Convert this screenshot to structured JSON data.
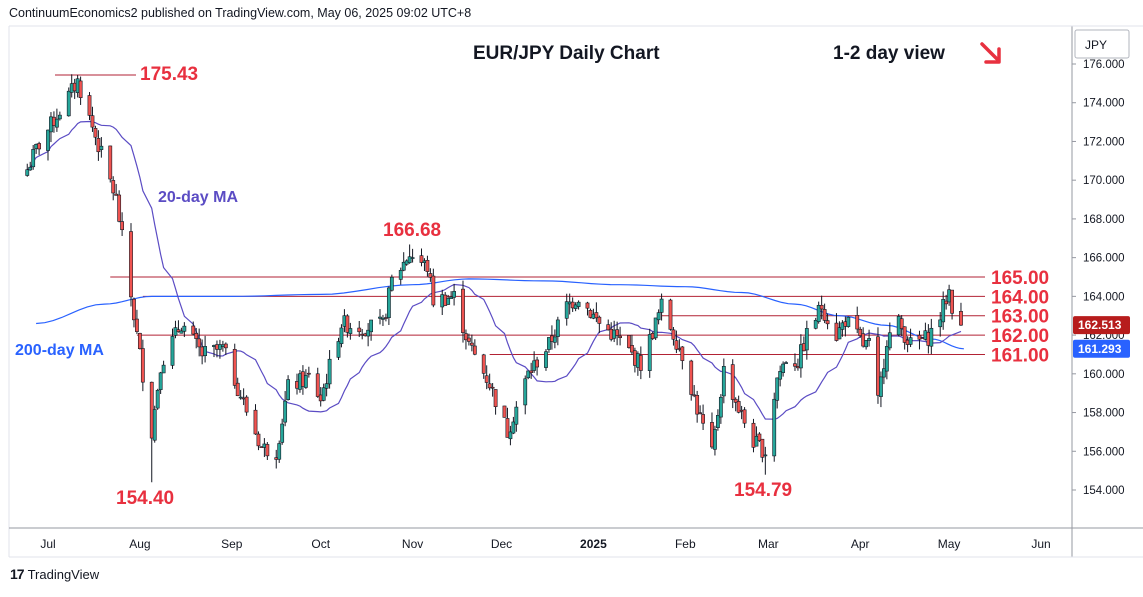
{
  "header": {
    "publisher_line": "ContinuumEconomics2 published on TradingView.com, May 06, 2025 09:02 UTC+8"
  },
  "chart_title": "EUR/JPY Daily Chart",
  "view_label": "1-2 day view",
  "view_arrow_icon": "down-right-arrow-icon",
  "currency_label": "JPY",
  "footer": {
    "logo_text": "TradingView"
  },
  "colors": {
    "bull": "#26a69a",
    "bear": "#ef5350",
    "candle_outline": "#131722",
    "ma20": "#5b4cc4",
    "ma200": "#2962ff",
    "level_line": "#b22234",
    "annotation_red": "#e8303f",
    "price_badge_last": "#b71c1c",
    "price_badge_ma": "#2962ff"
  },
  "chart_data": {
    "type": "candlestick",
    "pair": "EUR/JPY",
    "timeframe": "Daily",
    "y_axis": {
      "min": 152.0,
      "max": 177.0,
      "ticks": [
        "154.000",
        "156.000",
        "158.000",
        "160.000",
        "162.000",
        "164.000",
        "166.000",
        "168.000",
        "170.000",
        "172.000",
        "174.000",
        "176.000"
      ]
    },
    "x_axis": {
      "ticks": [
        "Jul",
        "Aug",
        "Sep",
        "Oct",
        "Nov",
        "Dec",
        "2025",
        "Feb",
        "Mar",
        "Apr",
        "May",
        "Jun"
      ],
      "bold_ticks": [
        "2025"
      ]
    },
    "annotations": {
      "highs_lows": [
        {
          "label": "175.43",
          "value": 175.43
        },
        {
          "label": "154.40",
          "value": 154.4
        },
        {
          "label": "166.68",
          "value": 166.68
        },
        {
          "label": "154.79",
          "value": 154.79
        }
      ],
      "levels": [
        {
          "label": "165.00",
          "value": 165.0
        },
        {
          "label": "164.00",
          "value": 164.0
        },
        {
          "label": "163.00",
          "value": 163.0
        },
        {
          "label": "162.00",
          "value": 162.0
        },
        {
          "label": "161.00",
          "value": 161.0
        }
      ],
      "ma_labels": [
        {
          "label": "20-day MA"
        },
        {
          "label": "200-day MA"
        }
      ]
    },
    "price_badges": [
      {
        "label": "162.513",
        "value": 162.513,
        "kind": "last"
      },
      {
        "label": "161.293",
        "value": 161.293,
        "kind": "ma200"
      }
    ],
    "anchors": [
      {
        "date": "2024-06-27",
        "close": 171.6
      },
      {
        "date": "2024-07-11",
        "close": 175.1
      },
      {
        "date": "2024-07-18",
        "close": 171.8
      },
      {
        "date": "2024-07-24",
        "close": 169.0
      },
      {
        "date": "2024-07-31",
        "close": 162.0
      },
      {
        "date": "2024-08-05",
        "close": 157.0
      },
      {
        "date": "2024-08-08",
        "close": 160.5
      },
      {
        "date": "2024-08-15",
        "close": 162.6
      },
      {
        "date": "2024-08-22",
        "close": 161.0
      },
      {
        "date": "2024-08-29",
        "close": 161.3
      },
      {
        "date": "2024-09-05",
        "close": 158.5
      },
      {
        "date": "2024-09-11",
        "close": 156.2
      },
      {
        "date": "2024-09-16",
        "close": 156.0
      },
      {
        "date": "2024-09-20",
        "close": 159.3
      },
      {
        "date": "2024-09-27",
        "close": 159.8
      },
      {
        "date": "2024-10-01",
        "close": 158.7
      },
      {
        "date": "2024-10-08",
        "close": 162.6
      },
      {
        "date": "2024-10-15",
        "close": 162.4
      },
      {
        "date": "2024-10-22",
        "close": 162.5
      },
      {
        "date": "2024-10-25",
        "close": 164.8
      },
      {
        "date": "2024-10-31",
        "close": 166.2
      },
      {
        "date": "2024-11-06",
        "close": 165.5
      },
      {
        "date": "2024-11-08",
        "close": 163.8
      },
      {
        "date": "2024-11-15",
        "close": 164.0
      },
      {
        "date": "2024-11-20",
        "close": 161.5
      },
      {
        "date": "2024-11-27",
        "close": 159.5
      },
      {
        "date": "2024-12-03",
        "close": 157.0
      },
      {
        "date": "2024-12-10",
        "close": 160.0
      },
      {
        "date": "2024-12-17",
        "close": 161.5
      },
      {
        "date": "2024-12-23",
        "close": 163.5
      },
      {
        "date": "2024-12-27",
        "close": 164.0
      },
      {
        "date": "2025-01-03",
        "close": 162.6
      },
      {
        "date": "2025-01-08",
        "close": 162.0
      },
      {
        "date": "2025-01-14",
        "close": 161.0
      },
      {
        "date": "2025-01-17",
        "close": 160.5
      },
      {
        "date": "2025-01-22",
        "close": 162.6
      },
      {
        "date": "2025-01-24",
        "close": 163.5
      },
      {
        "date": "2025-01-31",
        "close": 161.0
      },
      {
        "date": "2025-02-05",
        "close": 158.2
      },
      {
        "date": "2025-02-10",
        "close": 155.8
      },
      {
        "date": "2025-02-14",
        "close": 160.2
      },
      {
        "date": "2025-02-19",
        "close": 158.2
      },
      {
        "date": "2025-02-24",
        "close": 156.5
      },
      {
        "date": "2025-02-28",
        "close": 156.0
      },
      {
        "date": "2025-03-04",
        "close": 159.8
      },
      {
        "date": "2025-03-07",
        "close": 160.8
      },
      {
        "date": "2025-03-11",
        "close": 160.6
      },
      {
        "date": "2025-03-14",
        "close": 162.0
      },
      {
        "date": "2025-03-19",
        "close": 163.5
      },
      {
        "date": "2025-03-24",
        "close": 162.0
      },
      {
        "date": "2025-03-27",
        "close": 162.8
      },
      {
        "date": "2025-04-02",
        "close": 161.5
      },
      {
        "date": "2025-04-04",
        "close": 161.5
      },
      {
        "date": "2025-04-07",
        "close": 158.5
      },
      {
        "date": "2025-04-10",
        "close": 161.8
      },
      {
        "date": "2025-04-14",
        "close": 162.6
      },
      {
        "date": "2025-04-18",
        "close": 161.5
      },
      {
        "date": "2025-04-24",
        "close": 161.9
      },
      {
        "date": "2025-04-28",
        "close": 163.0
      },
      {
        "date": "2025-05-01",
        "close": 164.3
      },
      {
        "date": "2025-05-02",
        "close": 163.5
      },
      {
        "date": "2025-05-05",
        "close": 162.513
      }
    ]
  }
}
